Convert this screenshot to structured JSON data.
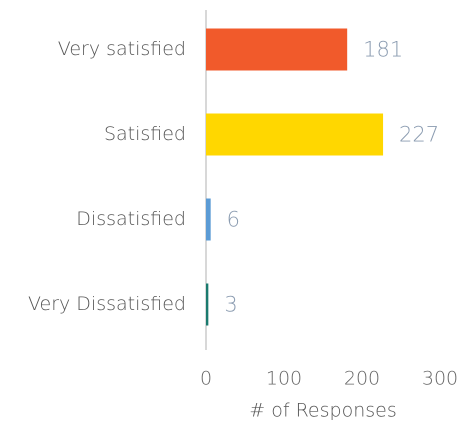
{
  "chart_data": {
    "type": "bar",
    "orientation": "horizontal",
    "x_label": "# of Responses",
    "categories": [
      "Very satisfied",
      "Satisfied",
      "Dissatisfied",
      "Very Dissatisfied"
    ],
    "values": [
      181,
      227,
      6,
      3
    ],
    "colors": [
      "#f15a2b",
      "#ffd700",
      "#5b9bd5",
      "#1a7a6e"
    ],
    "xlim": [
      0,
      300
    ],
    "xticks": [
      0,
      100,
      200,
      300
    ],
    "grid": false
  }
}
